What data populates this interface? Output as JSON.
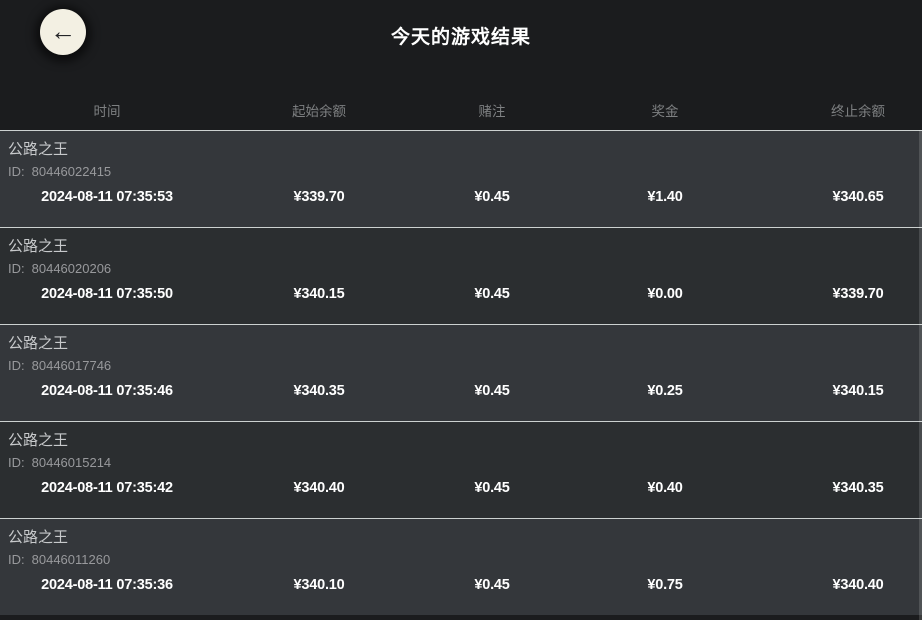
{
  "header": {
    "title": "今天的游戏结果",
    "back_icon": "←"
  },
  "table": {
    "columns": [
      "时间",
      "起始余额",
      "赌注",
      "奖金",
      "终止余额"
    ],
    "id_label": "ID:",
    "rows": [
      {
        "game": "公路之王",
        "id": "80446022415",
        "time": "2024-08-11 07:35:53",
        "start": "¥339.70",
        "bet": "¥0.45",
        "prize": "¥1.40",
        "end": "¥340.65"
      },
      {
        "game": "公路之王",
        "id": "80446020206",
        "time": "2024-08-11 07:35:50",
        "start": "¥340.15",
        "bet": "¥0.45",
        "prize": "¥0.00",
        "end": "¥339.70"
      },
      {
        "game": "公路之王",
        "id": "80446017746",
        "time": "2024-08-11 07:35:46",
        "start": "¥340.35",
        "bet": "¥0.45",
        "prize": "¥0.25",
        "end": "¥340.15"
      },
      {
        "game": "公路之王",
        "id": "80446015214",
        "time": "2024-08-11 07:35:42",
        "start": "¥340.40",
        "bet": "¥0.45",
        "prize": "¥0.40",
        "end": "¥340.35"
      },
      {
        "game": "公路之王",
        "id": "80446011260",
        "time": "2024-08-11 07:35:36",
        "start": "¥340.10",
        "bet": "¥0.45",
        "prize": "¥0.75",
        "end": "¥340.40"
      }
    ]
  },
  "colors": {
    "background": "#1b1c1e",
    "row_light": "#34373b",
    "row_dark": "#2b2e30",
    "separator": "#ccd1d0",
    "header_text": "#7e8082",
    "value_text": "#ffffff",
    "back_button_bg": "#f3f0e3"
  }
}
